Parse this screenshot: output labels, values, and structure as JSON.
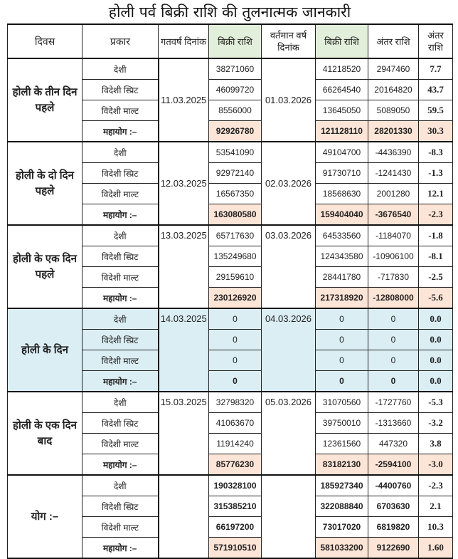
{
  "title": "होली पर्व बिक्री राशि की तुलनात्मक जानकारी",
  "headers": {
    "day": "दिवस",
    "type": "प्रकार",
    "prev_date": "गतवर्ष दिनांक",
    "prev_sale": "बिक्री राशि",
    "cur_date": "वर्तमान वर्ष दिनांक",
    "cur_sale": "बिक्री राशि",
    "diff": "अंतर राशि",
    "pct": "अंतर राशि"
  },
  "colors": {
    "header_green": "#e2efda",
    "total_orange": "#fce4d6",
    "holi_day_blue": "#dbeef4"
  },
  "sections": [
    {
      "day": "होली के तीन दिन पहले",
      "prev_date": "11.03.2025",
      "cur_date": "01.03.2026",
      "rows": [
        {
          "type": "देशी",
          "prev": "38271060",
          "cur": "41218520",
          "diff": "2947460",
          "pct": "7.7"
        },
        {
          "type": "विदेशी स्प्रिट",
          "prev": "46099720",
          "cur": "66264540",
          "diff": "20164820",
          "pct": "43.7"
        },
        {
          "type": "विदेशी माल्ट",
          "prev": "8556000",
          "cur": "13645050",
          "diff": "5089050",
          "pct": "59.5"
        },
        {
          "type": "महायोग :–",
          "prev": "92926780",
          "cur": "121128110",
          "diff": "28201330",
          "pct": "30.3"
        }
      ]
    },
    {
      "day": "होली के दो दिन पहले",
      "prev_date": "12.03.2025",
      "cur_date": "02.03.2026",
      "rows": [
        {
          "type": "देशी",
          "prev": "53541090",
          "cur": "49104700",
          "diff": "-4436390",
          "pct": "-8.3"
        },
        {
          "type": "विदेशी स्प्रिट",
          "prev": "92972140",
          "cur": "91730710",
          "diff": "-1241430",
          "pct": "-1.3"
        },
        {
          "type": "विदेशी माल्ट",
          "prev": "16567350",
          "cur": "18568630",
          "diff": "2001280",
          "pct": "12.1"
        },
        {
          "type": "महायोग :–",
          "prev": "163080580",
          "cur": "159404040",
          "diff": "-3676540",
          "pct": "-2.3"
        }
      ]
    },
    {
      "day": "होली के एक दिन पहले",
      "prev_date": "13.03.2025",
      "cur_date": "03.03.2026",
      "rows": [
        {
          "type": "देशी",
          "prev": "65717630",
          "cur": "64533560",
          "diff": "-1184070",
          "pct": "-1.8"
        },
        {
          "type": "विदेशी स्प्रिट",
          "prev": "135249680",
          "cur": "124343580",
          "diff": "-10906100",
          "pct": "-8.1"
        },
        {
          "type": "विदेशी माल्ट",
          "prev": "29159610",
          "cur": "28441780",
          "diff": "-717830",
          "pct": "-2.5"
        },
        {
          "type": "महायोग :–",
          "prev": "230126920",
          "cur": "217318920",
          "diff": "-12808000",
          "pct": "-5.6"
        }
      ]
    },
    {
      "day": "होली के दिन",
      "prev_date": "14.03.2025",
      "cur_date": "04.03.2026",
      "rows": [
        {
          "type": "देशी",
          "prev": "0",
          "cur": "0",
          "diff": "0",
          "pct": "0.0"
        },
        {
          "type": "विदेशी स्प्रिट",
          "prev": "0",
          "cur": "0",
          "diff": "0",
          "pct": "0.0"
        },
        {
          "type": "विदेशी माल्ट",
          "prev": "0",
          "cur": "0",
          "diff": "0",
          "pct": "0.0"
        },
        {
          "type": "महायोग :–",
          "prev": "0",
          "cur": "0",
          "diff": "0",
          "pct": "0.0"
        }
      ]
    },
    {
      "day": "होली के एक दिन बाद",
      "prev_date": "15.03.2025",
      "cur_date": "05.03.2026",
      "rows": [
        {
          "type": "देशी",
          "prev": "32798320",
          "cur": "31070560",
          "diff": "-1727760",
          "pct": "-5.3"
        },
        {
          "type": "विदेशी स्प्रिट",
          "prev": "41063670",
          "cur": "39750010",
          "diff": "-1313660",
          "pct": "-3.2"
        },
        {
          "type": "विदेशी माल्ट",
          "prev": "11914240",
          "cur": "12361560",
          "diff": "447320",
          "pct": "3.8"
        },
        {
          "type": "महायोग :–",
          "prev": "85776230",
          "cur": "83182130",
          "diff": "-2594100",
          "pct": "-3.0"
        }
      ]
    },
    {
      "day": "योग :–",
      "prev_date": "",
      "cur_date": "",
      "rows": [
        {
          "type": "देशी",
          "prev": "190328100",
          "cur": "185927340",
          "diff": "-4400760",
          "pct": "-2.3"
        },
        {
          "type": "विदेशी स्प्रिट",
          "prev": "315385210",
          "cur": "322088840",
          "diff": "6703630",
          "pct": "2.1"
        },
        {
          "type": "विदेशी माल्ट",
          "prev": "66197200",
          "cur": "73017020",
          "diff": "6819820",
          "pct": "10.3"
        },
        {
          "type": "महायोग :–",
          "prev": "571910510",
          "cur": "581033200",
          "diff": "9122690",
          "pct": "1.60"
        }
      ]
    }
  ]
}
